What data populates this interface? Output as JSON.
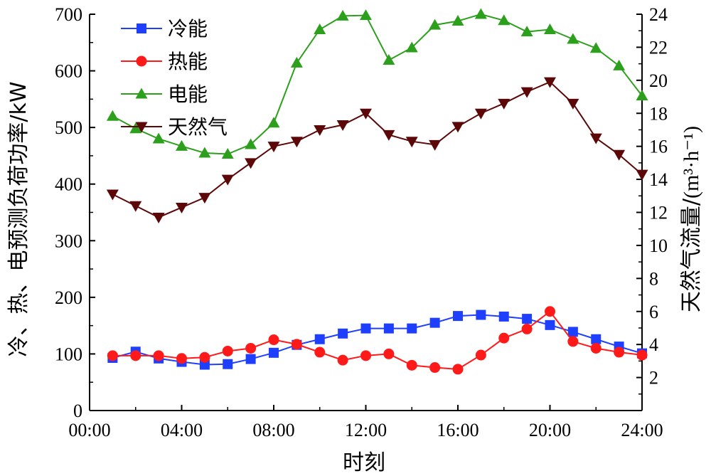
{
  "chart_data": {
    "type": "line",
    "xlabel": "时刻",
    "ylabel_left": "冷、热、电预测负荷功率/kW",
    "ylabel_right_text": "天然气流量/",
    "ylabel_right_unit": "(m³·h⁻¹)",
    "x_range": [
      0,
      24
    ],
    "x_ticks": [
      0,
      4,
      8,
      12,
      16,
      20,
      24
    ],
    "x_tick_labels": [
      "00:00",
      "04:00",
      "08:00",
      "12:00",
      "16:00",
      "20:00",
      "24:00"
    ],
    "y_left_range": [
      0,
      700
    ],
    "y_left_ticks": [
      0,
      100,
      200,
      300,
      400,
      500,
      600,
      700
    ],
    "y_right_range": [
      0,
      24
    ],
    "y_right_ticks": [
      2,
      4,
      6,
      8,
      10,
      12,
      14,
      16,
      18,
      20,
      22,
      24
    ],
    "x": [
      1,
      2,
      3,
      4,
      5,
      6,
      7,
      8,
      9,
      10,
      11,
      12,
      13,
      14,
      15,
      16,
      17,
      18,
      19,
      20,
      21,
      22,
      23,
      24
    ],
    "series": [
      {
        "name": "冷能",
        "axis": "left",
        "marker": "square",
        "color": "#1f3fff",
        "values": [
          93,
          104,
          92,
          86,
          81,
          82,
          91,
          102,
          116,
          126,
          136,
          145,
          145,
          145,
          155,
          167,
          169,
          166,
          162,
          151,
          139,
          126,
          113,
          101
        ]
      },
      {
        "name": "热能",
        "axis": "left",
        "marker": "circle",
        "color": "#ff1a1a",
        "values": [
          97,
          97,
          97,
          92,
          94,
          105,
          110,
          125,
          117,
          103,
          89,
          97,
          100,
          80,
          76,
          73,
          98,
          128,
          144,
          175,
          122,
          110,
          103,
          98
        ]
      },
      {
        "name": "电能",
        "axis": "left",
        "marker": "triangle-up",
        "color": "#2ca01c",
        "values": [
          520,
          498,
          480,
          467,
          455,
          453,
          470,
          508,
          614,
          673,
          697,
          698,
          619,
          641,
          681,
          688,
          700,
          689,
          669,
          673,
          656,
          640,
          609,
          556
        ]
      },
      {
        "name": "天然气",
        "axis": "right",
        "marker": "triangle-down",
        "color": "#5c0808",
        "values": [
          13.1,
          12.4,
          11.7,
          12.3,
          12.9,
          14.0,
          15.0,
          16.0,
          16.3,
          17.0,
          17.3,
          18.0,
          16.7,
          16.3,
          16.1,
          17.2,
          18.0,
          18.6,
          19.3,
          19.9,
          18.6,
          16.5,
          15.5,
          14.3
        ]
      }
    ],
    "legend_position": "top-left"
  }
}
